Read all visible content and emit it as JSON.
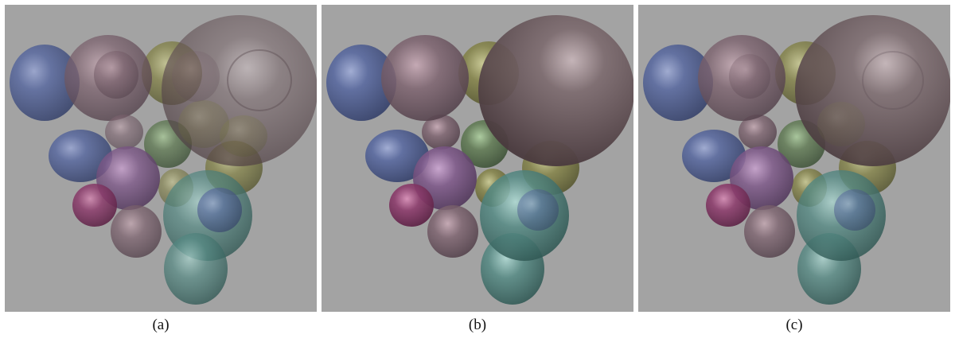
{
  "figure": {
    "panels": [
      {
        "id": "a",
        "caption": "(a)"
      },
      {
        "id": "b",
        "caption": "(b)"
      },
      {
        "id": "c",
        "caption": "(c)"
      }
    ]
  },
  "palette": {
    "background": "#a3a3a3",
    "blue": "#4b5a8c",
    "purple": "#7a5a86",
    "magenta": "#8a3d6a",
    "mauve": "#7e6670",
    "olive": "#7f7f48",
    "green": "#5f7a52",
    "teal": "#4f7f7a",
    "brown": "#6e5a5c"
  }
}
